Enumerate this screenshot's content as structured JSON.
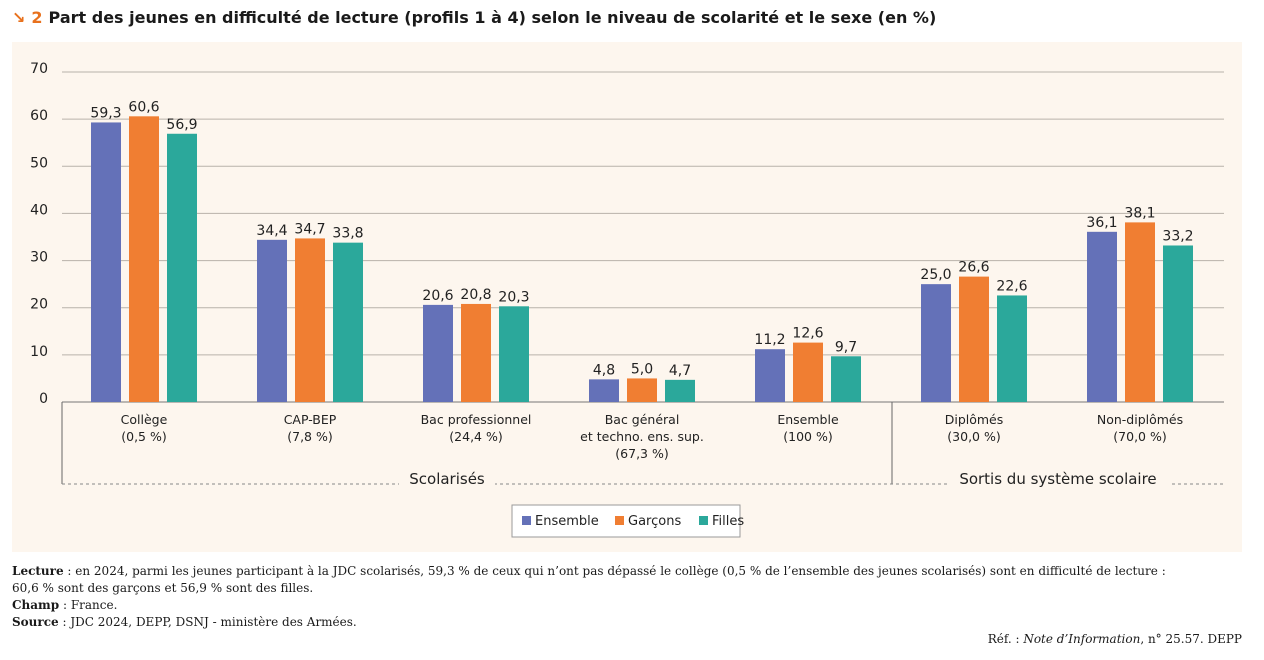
{
  "title": {
    "number": "2",
    "text": "Part des jeunes en difficulté de lecture (profils 1 à 4) selon le niveau de scolarité et le sexe (en %)"
  },
  "chart_data": {
    "type": "bar",
    "ylim": [
      0,
      70
    ],
    "yticks": [
      0,
      10,
      20,
      30,
      40,
      50,
      60,
      70
    ],
    "categories": [
      {
        "label": [
          "Collège",
          "(0,5 %)"
        ]
      },
      {
        "label": [
          "CAP-BEP",
          "(7,8 %)"
        ]
      },
      {
        "label": [
          "Bac professionnel",
          "(24,4 %)"
        ]
      },
      {
        "label": [
          "Bac général",
          "et techno. ens. sup.",
          "(67,3 %)"
        ]
      },
      {
        "label": [
          "Ensemble",
          "(100 %)"
        ]
      },
      {
        "label": [
          "Diplômés",
          "(30,0 %)"
        ]
      },
      {
        "label": [
          "Non-diplômés",
          "(70,0 %)"
        ]
      }
    ],
    "series": [
      {
        "name": "Ensemble",
        "color": "#6471b8",
        "values": [
          59.3,
          34.4,
          20.6,
          4.8,
          11.2,
          25.0,
          36.1
        ],
        "labels": [
          "59,3",
          "34,4",
          "20,6",
          "4,8",
          "11,2",
          "25,0",
          "36,1"
        ]
      },
      {
        "name": "Garçons",
        "color": "#f07e32",
        "values": [
          60.6,
          34.7,
          20.8,
          5.0,
          12.6,
          26.6,
          38.1
        ],
        "labels": [
          "60,6",
          "34,7",
          "20,8",
          "5,0",
          "12,6",
          "26,6",
          "38,1"
        ]
      },
      {
        "name": "Filles",
        "color": "#2ba89b",
        "values": [
          56.9,
          33.8,
          20.3,
          4.7,
          9.7,
          22.6,
          33.2
        ],
        "labels": [
          "56,9",
          "33,8",
          "20,3",
          "4,7",
          "9,7",
          "22,6",
          "33,2"
        ]
      }
    ],
    "groups": [
      {
        "label": "Scolarisés",
        "categories": [
          0,
          1,
          2,
          3,
          4
        ]
      },
      {
        "label": "Sortis du système scolaire",
        "categories": [
          5,
          6
        ]
      }
    ],
    "legend": {
      "position": "bottom",
      "entries": [
        "Ensemble",
        "Garçons",
        "Filles"
      ]
    }
  },
  "notes": {
    "lecture_label": "Lecture",
    "lecture_line1": " : en 2024, parmi les jeunes participant à la JDC scolarisés, 59,3 % de ceux qui n’ont pas dépassé le collège (0,5 % de l’ensemble des jeunes scolarisés) sont en difficulté de lecture :",
    "lecture_line2": "60,6 % sont des garçons et 56,9 % sont des filles.",
    "champ_label": "Champ",
    "champ_text": " : France.",
    "source_label": "Source",
    "source_text": " : JDC 2024, DEPP, DSNJ - ministère des Armées."
  },
  "ref": {
    "prefix": "Réf. : ",
    "publication": "Note d’Information",
    "suffix": ", n° 25.57. DEPP"
  }
}
